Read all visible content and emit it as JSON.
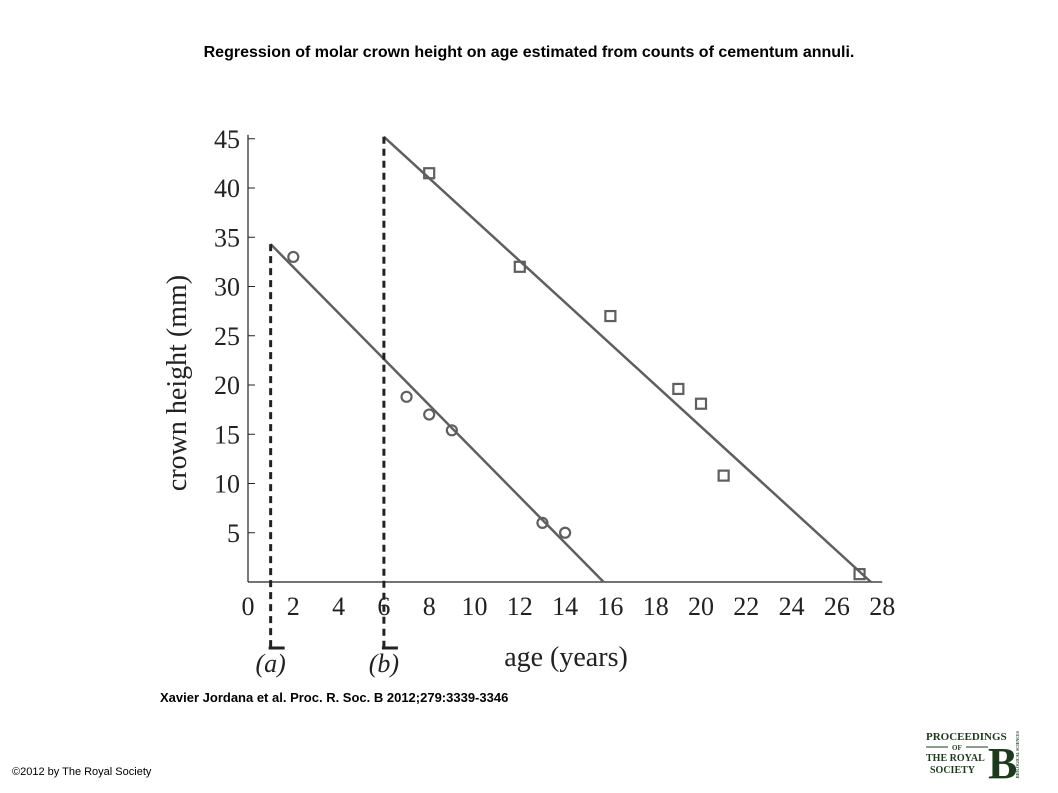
{
  "title": "Regression of molar crown height on age estimated from counts of cementum annuli.",
  "citation": "Xavier Jordana et al. Proc. R. Soc. B 2012;279:3339-3346",
  "copyright": "©2012 by The Royal Society",
  "logo": {
    "line1": "PROCEEDINGS",
    "line2": "OF",
    "line3": "THE ROYAL",
    "line4": "SOCIETY",
    "letter": "B",
    "side": "BIOLOGICAL SCIENCES"
  },
  "chart_data": {
    "type": "scatter",
    "title": "",
    "xlabel": "age (years)",
    "ylabel": "crown height (mm)",
    "xlim": [
      0,
      28
    ],
    "ylim": [
      0,
      45
    ],
    "xticks": [
      "0",
      "2",
      "4",
      "6",
      "8",
      "10",
      "12",
      "14",
      "16",
      "18",
      "20",
      "22",
      "24",
      "26",
      "28"
    ],
    "yticks": [
      "5",
      "10",
      "15",
      "20",
      "25",
      "30",
      "35",
      "40",
      "45"
    ],
    "series": [
      {
        "marker": "circle",
        "points": [
          [
            2,
            33
          ],
          [
            7,
            18.8
          ],
          [
            8,
            17
          ],
          [
            9,
            15.4
          ],
          [
            13,
            6
          ],
          [
            14,
            5
          ]
        ],
        "fit_line": [
          [
            1,
            34.3
          ],
          [
            15.7,
            0
          ]
        ]
      },
      {
        "marker": "square",
        "points": [
          [
            8,
            41.5
          ],
          [
            12,
            32
          ],
          [
            16,
            27
          ],
          [
            19,
            19.6
          ],
          [
            20,
            18.1
          ],
          [
            21,
            10.8
          ],
          [
            27,
            0.8
          ]
        ],
        "fit_line": [
          [
            6,
            45.2
          ],
          [
            27.5,
            0
          ]
        ]
      }
    ],
    "vertical_markers": [
      {
        "label": "(a)",
        "x": 1
      },
      {
        "label": "(b)",
        "x": 6
      }
    ],
    "grid": false,
    "line_color": "#5f5f5f",
    "marker_color": "#5f5f5f"
  }
}
